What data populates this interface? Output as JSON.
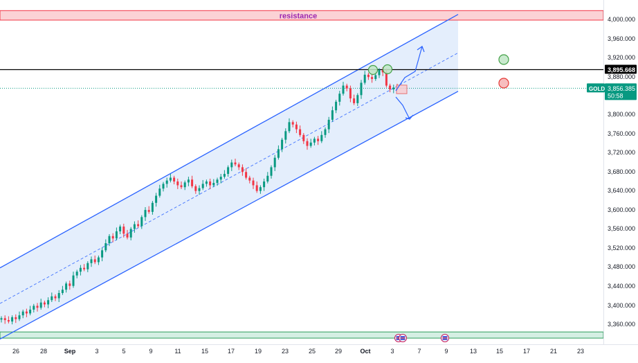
{
  "chart_data": {
    "type": "candlestick",
    "symbol": "GOLD",
    "price_axis": {
      "ylim": [
        3330,
        4030
      ],
      "ticks": [
        "4,000.000",
        "3,960.000",
        "3,920.000",
        "3,880.000",
        "3,800.000",
        "3,760.000",
        "3,720.000",
        "3,680.000",
        "3,640.000",
        "3,600.000",
        "3,560.000",
        "3,520.000",
        "3,480.000",
        "3,440.000",
        "3,400.000",
        "3,360.000"
      ],
      "tick_values": [
        4000,
        3960,
        3920,
        3880,
        3800,
        3760,
        3720,
        3680,
        3640,
        3600,
        3560,
        3520,
        3480,
        3440,
        3400,
        3360
      ]
    },
    "time_axis": {
      "ticks": [
        "26",
        "28",
        "Sep",
        "3",
        "5",
        "9",
        "11",
        "15",
        "17",
        "19",
        "23",
        "25",
        "29",
        "Oct",
        "3",
        "7",
        "9",
        "13",
        "15",
        "17",
        "21",
        "23"
      ],
      "bold_ticks": [
        "Sep",
        "Oct"
      ]
    },
    "zones": [
      {
        "name": "resistance",
        "label": "resistance",
        "from": 4000,
        "to": 4020,
        "color": "#f23645"
      },
      {
        "name": "support",
        "label": "",
        "from": 3330,
        "to": 3343,
        "color": "#089981"
      }
    ],
    "horizontal_line": {
      "value": 3895.668,
      "label": "3,895.668",
      "color": "#000000"
    },
    "current_price": {
      "value": 3856.385,
      "label": "3,856.385",
      "symbol_label": "GOLD",
      "countdown": "50:58",
      "color": "#089981"
    },
    "channel": {
      "upper_start": 3478,
      "upper_end": 4012,
      "lower_start": 3328,
      "lower_end": 3850,
      "mid_start": 3403,
      "mid_end": 3931,
      "line_color": "#2962ff",
      "fill_color": "#dbe8fb"
    },
    "candle_closes": [
      3372,
      3368,
      3365,
      3374,
      3370,
      3378,
      3386,
      3382,
      3390,
      3398,
      3394,
      3405,
      3401,
      3410,
      3418,
      3414,
      3425,
      3432,
      3445,
      3440,
      3462,
      3470,
      3478,
      3475,
      3488,
      3496,
      3490,
      3500,
      3515,
      3530,
      3545,
      3540,
      3555,
      3565,
      3550,
      3542,
      3560,
      3570,
      3566,
      3585,
      3600,
      3596,
      3615,
      3630,
      3645,
      3655,
      3662,
      3668,
      3660,
      3652,
      3648,
      3658,
      3664,
      3650,
      3640,
      3646,
      3655,
      3660,
      3652,
      3657,
      3664,
      3670,
      3676,
      3690,
      3700,
      3696,
      3690,
      3680,
      3668,
      3662,
      3652,
      3640,
      3648,
      3660,
      3672,
      3690,
      3710,
      3728,
      3748,
      3766,
      3785,
      3780,
      3770,
      3758,
      3745,
      3735,
      3742,
      3750,
      3745,
      3758,
      3770,
      3790,
      3810,
      3828,
      3845,
      3862,
      3856,
      3835,
      3825,
      3842,
      3868,
      3885,
      3880,
      3876,
      3884,
      3895,
      3890,
      3862,
      3854,
      3858,
      3856.385
    ],
    "markers": [
      {
        "name": "green-circle-1",
        "color": "#43a047",
        "price": 3892
      },
      {
        "name": "green-circle-2",
        "color": "#43a047",
        "price": 3892
      },
      {
        "name": "green-circle-right",
        "color": "#43a047",
        "price": 3912
      },
      {
        "name": "red-circle-right",
        "color": "#e53935",
        "price": 3857
      }
    ],
    "projection_box": {
      "top": 3863,
      "bottom": 3845,
      "color": "#e57373"
    },
    "arrows": [
      {
        "name": "arrow-up",
        "direction": "up"
      },
      {
        "name": "arrow-down",
        "direction": "down"
      }
    ],
    "event_icons": [
      {
        "name": "event-flag-icon-1",
        "type": "US economic event"
      },
      {
        "name": "event-flag-icon-2",
        "type": "US economic event"
      },
      {
        "name": "event-flag-icon-3",
        "type": "US economic event"
      }
    ],
    "colors": {
      "up": "#089981",
      "down": "#f23645"
    }
  }
}
